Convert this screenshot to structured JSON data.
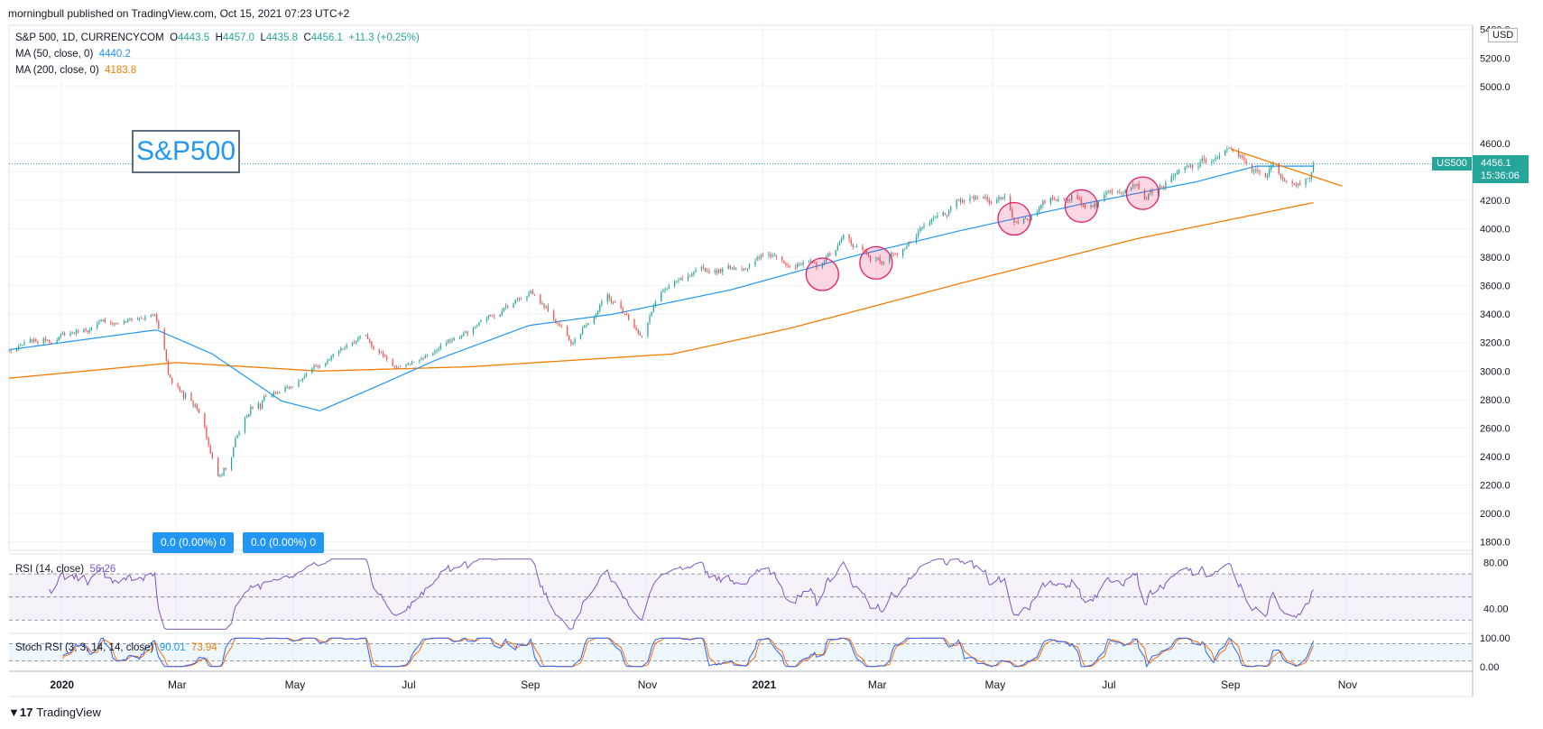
{
  "header": {
    "publisher": "morningbull published on TradingView.com, Oct 15, 2021 07:23 UTC+2"
  },
  "footer": {
    "brand": "TradingView",
    "logo_icon": "tradingview-logo-icon"
  },
  "legend": {
    "symbol": "S&P 500, 1D, CURRENCYCOM",
    "o_label": "O",
    "o_value": "4443.5",
    "h_label": "H",
    "h_value": "4457.0",
    "l_label": "L",
    "l_value": "4435.8",
    "c_label": "C",
    "c_value": "4456.1",
    "change": "+11.3 (+0.25%)",
    "ma50_label": "MA (50, close, 0)",
    "ma50_value": "4440.2",
    "ma200_label": "MA (200, close, 0)",
    "ma200_value": "4183.8",
    "rsi_label": "RSI (14, close)",
    "rsi_value": "56.26",
    "stoch_label": "Stoch RSI (3, 3, 14, 14, close)",
    "stoch_k": "90.01",
    "stoch_d": "73.94"
  },
  "annotation_text": "S&P500",
  "badges": [
    "0.0 (0.00%) 0",
    "0.0 (0.00%) 0"
  ],
  "price_tag": {
    "symbol": "US500",
    "price": "4456.1",
    "countdown": "15:36:06",
    "currency": "USD"
  },
  "colors": {
    "up": "#26a69a",
    "down": "#ef5350",
    "ma50": "#2196f3",
    "ma200": "#f57c00",
    "rsi": "#7e57c2",
    "stoch_k": "#2962ff",
    "stoch_d": "#ff6d00",
    "circle": "#e91e63"
  },
  "chart_data": [
    {
      "type": "candlestick",
      "title": "S&P 500, 1D, CURRENCYCOM",
      "x_ticks": [
        "2020",
        "Mar",
        "May",
        "Jul",
        "Sep",
        "Nov",
        "2021",
        "Mar",
        "May",
        "Jul",
        "Sep",
        "Nov"
      ],
      "x_tick_dates": [
        "2020-01-01",
        "2020-03-01",
        "2020-05-01",
        "2020-07-01",
        "2020-09-01",
        "2020-11-01",
        "2021-01-01",
        "2021-03-01",
        "2021-05-01",
        "2021-07-01",
        "2021-09-01",
        "2021-11-01"
      ],
      "y_ticks": [
        1800,
        2000,
        2200,
        2400,
        2600,
        2800,
        3000,
        3200,
        3400,
        3600,
        3800,
        4000,
        4200,
        4400,
        4600,
        5000,
        5200,
        5400
      ],
      "y_tick_labels": [
        "1800.0",
        "2000.0",
        "2200.0",
        "2400.0",
        "2600.0",
        "2800.0",
        "3000.0",
        "3200.0",
        "3400.0",
        "3600.0",
        "3800.0",
        "4000.0",
        "4200.0",
        "4400.0",
        "4600.0",
        "5000.0",
        "5200.0",
        "5400.0"
      ],
      "xlim": [
        "2019-12-05",
        "2022-01-06"
      ],
      "ylim": [
        1740,
        5430
      ],
      "grid": true,
      "price_anchors": [
        {
          "date": "2019-12-05",
          "close": 3140
        },
        {
          "date": "2020-01-20",
          "close": 3320
        },
        {
          "date": "2020-02-19",
          "close": 3390
        },
        {
          "date": "2020-02-28",
          "close": 2950
        },
        {
          "date": "2020-03-10",
          "close": 2850
        },
        {
          "date": "2020-03-23",
          "close": 2240
        },
        {
          "date": "2020-04-08",
          "close": 2750
        },
        {
          "date": "2020-04-29",
          "close": 2900
        },
        {
          "date": "2020-06-08",
          "close": 3230
        },
        {
          "date": "2020-06-26",
          "close": 3010
        },
        {
          "date": "2020-07-31",
          "close": 3270
        },
        {
          "date": "2020-09-02",
          "close": 3580
        },
        {
          "date": "2020-09-23",
          "close": 3240
        },
        {
          "date": "2020-10-12",
          "close": 3530
        },
        {
          "date": "2020-10-30",
          "close": 3270
        },
        {
          "date": "2020-11-09",
          "close": 3560
        },
        {
          "date": "2020-12-08",
          "close": 3700
        },
        {
          "date": "2021-01-08",
          "close": 3820
        },
        {
          "date": "2021-01-29",
          "close": 3710
        },
        {
          "date": "2021-02-12",
          "close": 3930
        },
        {
          "date": "2021-03-04",
          "close": 3770
        },
        {
          "date": "2021-04-16",
          "close": 4180
        },
        {
          "date": "2021-05-07",
          "close": 4230
        },
        {
          "date": "2021-05-12",
          "close": 4060
        },
        {
          "date": "2021-06-11",
          "close": 4250
        },
        {
          "date": "2021-06-18",
          "close": 4160
        },
        {
          "date": "2021-07-14",
          "close": 4380
        },
        {
          "date": "2021-07-19",
          "close": 4260
        },
        {
          "date": "2021-08-31",
          "close": 4530
        },
        {
          "date": "2021-09-10",
          "close": 4470
        },
        {
          "date": "2021-09-20",
          "close": 4330
        },
        {
          "date": "2021-09-24",
          "close": 4440
        },
        {
          "date": "2021-10-04",
          "close": 4300
        },
        {
          "date": "2021-10-15",
          "close": 4456
        }
      ],
      "ma50_anchors": [
        {
          "date": "2019-12-05",
          "value": 3150
        },
        {
          "date": "2020-02-20",
          "value": 3290
        },
        {
          "date": "2020-03-20",
          "value": 3120
        },
        {
          "date": "2020-04-25",
          "value": 2790
        },
        {
          "date": "2020-05-15",
          "value": 2720
        },
        {
          "date": "2020-06-15",
          "value": 2900
        },
        {
          "date": "2020-07-15",
          "value": 3080
        },
        {
          "date": "2020-09-01",
          "value": 3320
        },
        {
          "date": "2020-10-15",
          "value": 3400
        },
        {
          "date": "2020-12-15",
          "value": 3570
        },
        {
          "date": "2021-02-15",
          "value": 3800
        },
        {
          "date": "2021-04-15",
          "value": 3990
        },
        {
          "date": "2021-06-15",
          "value": 4170
        },
        {
          "date": "2021-08-15",
          "value": 4330
        },
        {
          "date": "2021-09-15",
          "value": 4440
        },
        {
          "date": "2021-10-15",
          "value": 4440
        }
      ],
      "ma200_anchors": [
        {
          "date": "2019-12-05",
          "value": 2950
        },
        {
          "date": "2020-03-01",
          "value": 3060
        },
        {
          "date": "2020-05-15",
          "value": 3000
        },
        {
          "date": "2020-08-01",
          "value": 3030
        },
        {
          "date": "2020-11-15",
          "value": 3120
        },
        {
          "date": "2021-01-15",
          "value": 3300
        },
        {
          "date": "2021-04-15",
          "value": 3620
        },
        {
          "date": "2021-07-15",
          "value": 3930
        },
        {
          "date": "2021-10-15",
          "value": 4183.8
        }
      ],
      "trendline": {
        "from": {
          "date": "2021-09-02",
          "value": 4560
        },
        "to": {
          "date": "2021-10-30",
          "value": 4300
        }
      },
      "circles": [
        {
          "date": "2021-02-01",
          "value": 3680
        },
        {
          "date": "2021-03-01",
          "value": 3760
        },
        {
          "date": "2021-05-12",
          "value": 4070
        },
        {
          "date": "2021-06-16",
          "value": 4160
        },
        {
          "date": "2021-07-18",
          "value": 4250
        }
      ],
      "last_price": 4456.1
    },
    {
      "type": "line",
      "title": "RSI (14, close)",
      "y_ticks": [
        40,
        80
      ],
      "y_tick_labels": [
        "40.00",
        "80.00"
      ],
      "ylim": [
        20,
        85
      ],
      "bands": [
        30,
        50,
        70
      ],
      "series": [
        {
          "name": "RSI (14, close)",
          "last": 56.26
        }
      ]
    },
    {
      "type": "line",
      "title": "Stoch RSI (3, 3, 14, 14, close)",
      "y_ticks": [
        0,
        100
      ],
      "y_tick_labels": [
        "0.00",
        "100.00"
      ],
      "ylim": [
        -10,
        110
      ],
      "bands": [
        20,
        80
      ],
      "series": [
        {
          "name": "K",
          "last": 90.01
        },
        {
          "name": "D",
          "last": 73.94
        }
      ]
    }
  ]
}
